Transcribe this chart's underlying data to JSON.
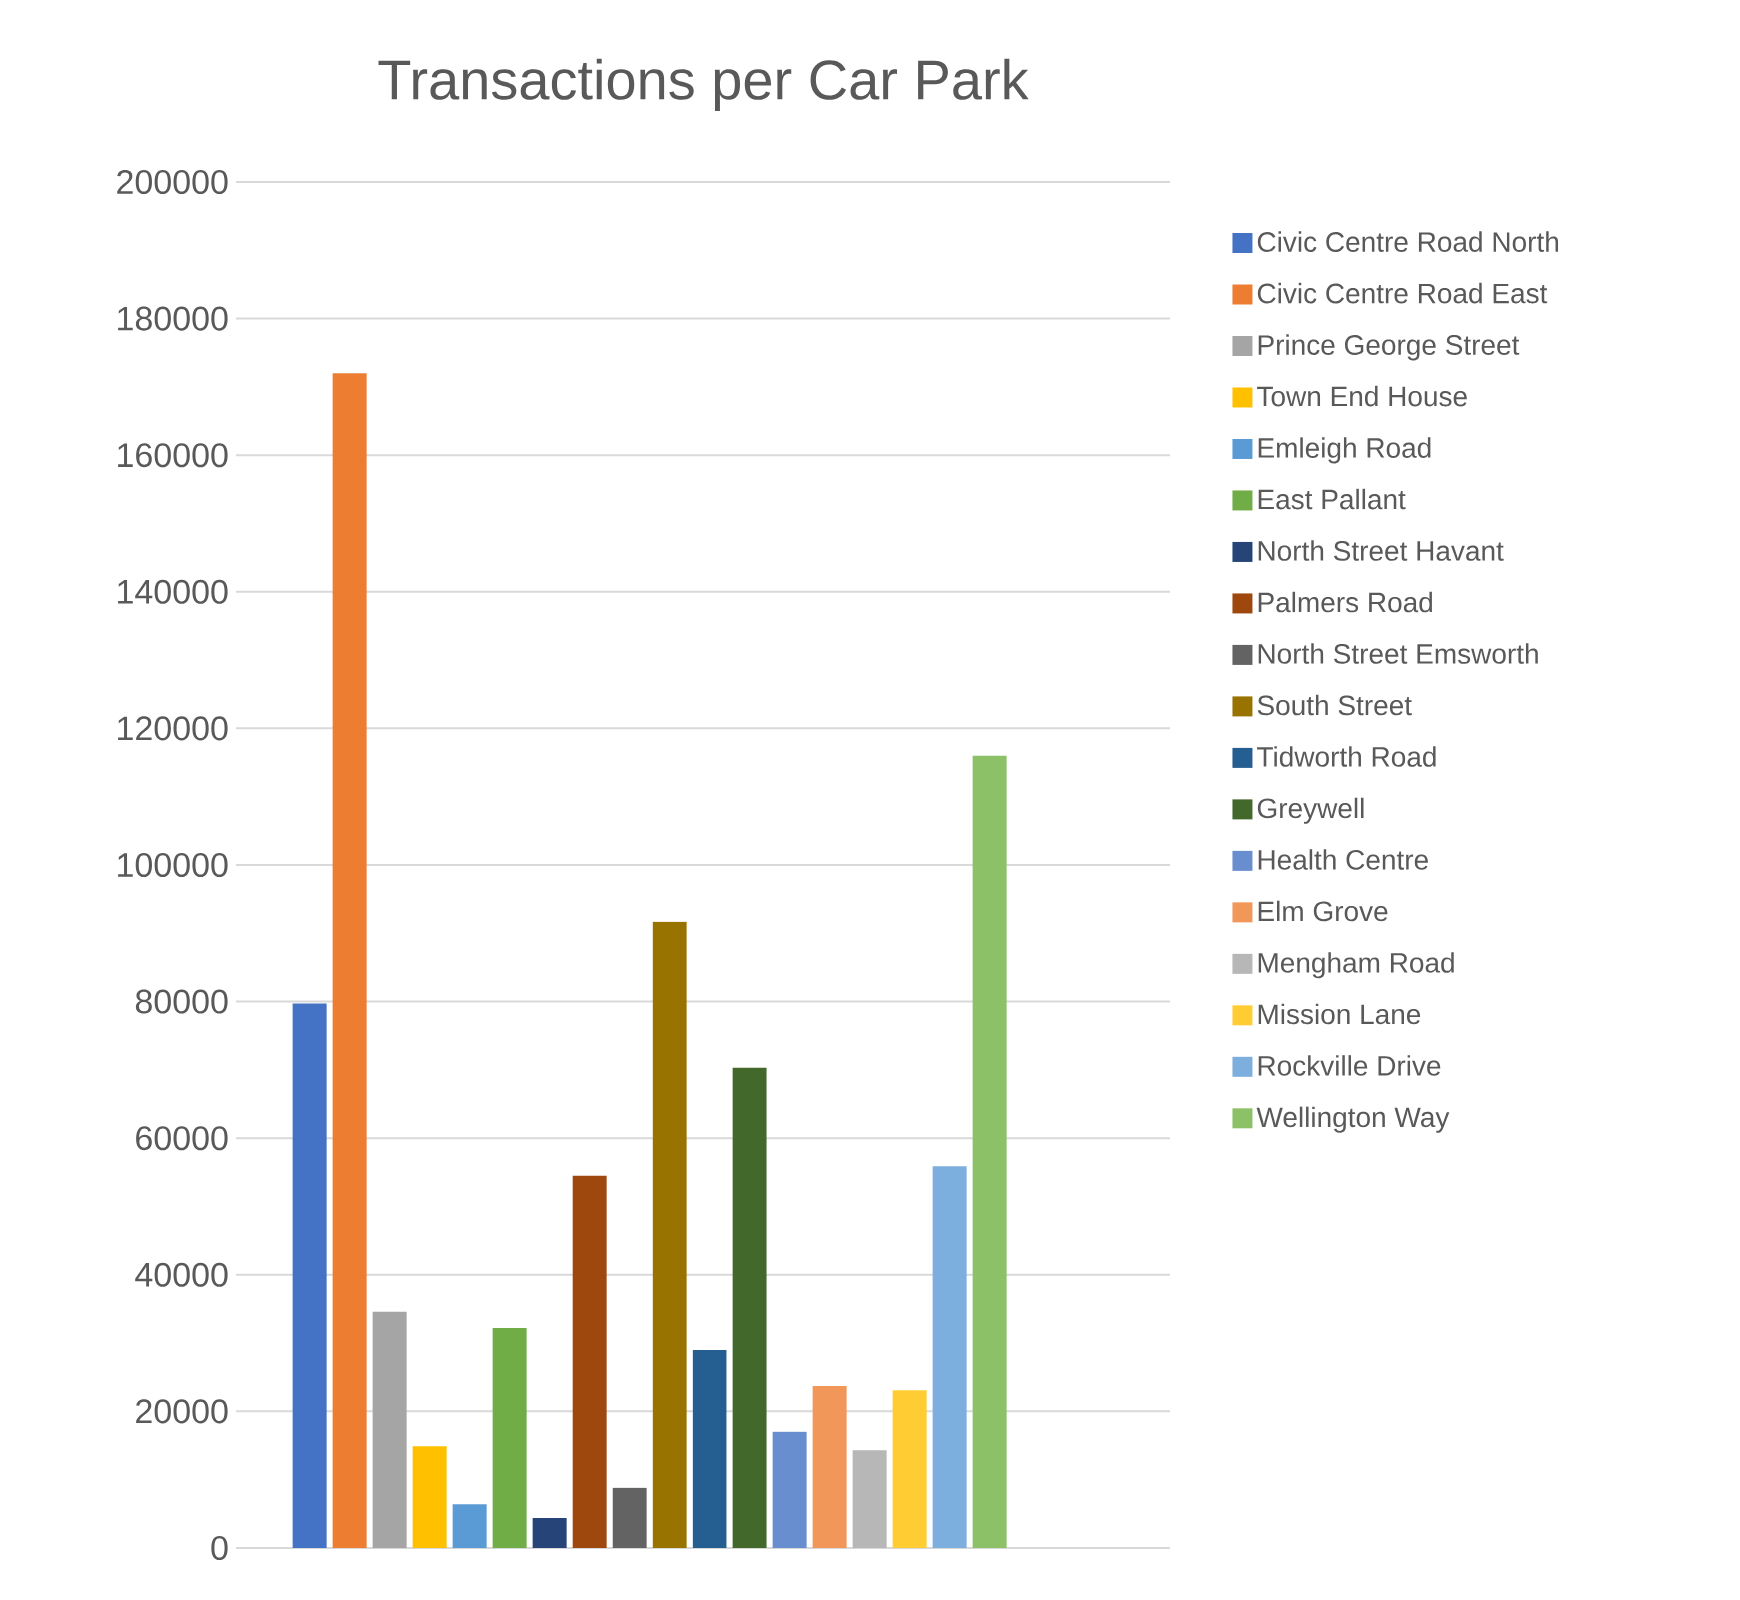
{
  "chart_data": {
    "type": "bar",
    "title": "Transactions per Car Park",
    "categories": [
      null
    ],
    "ylim": [
      0,
      200000
    ],
    "yticks": [
      0,
      20000,
      40000,
      60000,
      80000,
      100000,
      120000,
      140000,
      160000,
      180000,
      200000
    ],
    "grid": "y",
    "legend": "right",
    "series": [
      {
        "name": "Civic Centre Road North",
        "color": "#4472c4",
        "values": [
          79700
        ]
      },
      {
        "name": "Civic Centre Road East",
        "color": "#ed7d31",
        "values": [
          172000
        ]
      },
      {
        "name": "Prince George Street",
        "color": "#a5a5a5",
        "values": [
          34600
        ]
      },
      {
        "name": "Town End House",
        "color": "#ffc000",
        "values": [
          14900
        ]
      },
      {
        "name": "Emleigh Road",
        "color": "#5b9bd5",
        "values": [
          6400
        ]
      },
      {
        "name": "East Pallant",
        "color": "#70ad47",
        "values": [
          32200
        ]
      },
      {
        "name": "North Street Havant",
        "color": "#264478",
        "values": [
          4400
        ]
      },
      {
        "name": "Palmers Road",
        "color": "#9e480e",
        "values": [
          54500
        ]
      },
      {
        "name": "North Street Emsworth",
        "color": "#636363",
        "values": [
          8800
        ]
      },
      {
        "name": "South Street",
        "color": "#997300",
        "values": [
          91700
        ]
      },
      {
        "name": "Tidworth Road",
        "color": "#255e91",
        "values": [
          29000
        ]
      },
      {
        "name": "Greywell",
        "color": "#43682b",
        "values": [
          70300
        ]
      },
      {
        "name": "Health Centre",
        "color": "#698ed0",
        "values": [
          17000
        ]
      },
      {
        "name": "Elm Grove",
        "color": "#f1975a",
        "values": [
          23700
        ]
      },
      {
        "name": "Mengham Road",
        "color": "#b7b7b7",
        "values": [
          14300
        ]
      },
      {
        "name": "Mission Lane",
        "color": "#ffcd33",
        "values": [
          23100
        ]
      },
      {
        "name": "Rockville Drive",
        "color": "#7cafdd",
        "values": [
          55900
        ]
      },
      {
        "name": "Wellington Way",
        "color": "#8cc168",
        "values": [
          116000
        ]
      }
    ]
  }
}
